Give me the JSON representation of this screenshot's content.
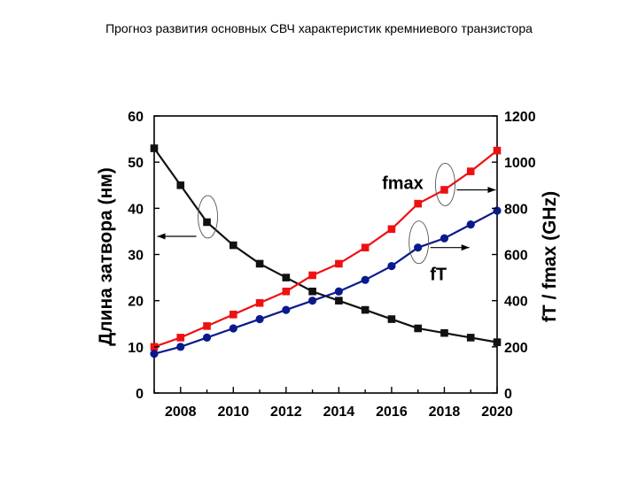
{
  "page": {
    "title": "Прогноз развития основных СВЧ характеристик кремниевого транзистора"
  },
  "chart_data": {
    "type": "line",
    "x": [
      2007,
      2008,
      2009,
      2010,
      2011,
      2012,
      2013,
      2014,
      2015,
      2016,
      2017,
      2018,
      2019,
      2020
    ],
    "xlim": [
      2007,
      2020
    ],
    "xticks": [
      2008,
      2010,
      2012,
      2014,
      2016,
      2018,
      2020
    ],
    "ylabel_left": "Длина затвора (нм)",
    "ylim_left": [
      0,
      60
    ],
    "yticks_left": [
      0,
      10,
      20,
      30,
      40,
      50,
      60
    ],
    "ylabel_right": "fT / fmax (GHz)",
    "ylim_right": [
      0,
      1200
    ],
    "yticks_right": [
      0,
      200,
      400,
      600,
      800,
      1000,
      1200
    ],
    "grid": false,
    "series": [
      {
        "axis": "left",
        "color": "#111111",
        "marker": "square",
        "values": [
          53,
          45,
          37,
          32,
          28,
          25,
          22,
          20,
          18,
          16,
          14,
          13,
          12,
          11
        ]
      },
      {
        "name": "fmax",
        "axis": "right",
        "color": "#ee1111",
        "marker": "square",
        "values": [
          200,
          240,
          290,
          340,
          390,
          440,
          510,
          560,
          630,
          710,
          820,
          880,
          960,
          1050
        ]
      },
      {
        "name": "fT",
        "axis": "right",
        "color": "#0a1a8c",
        "marker": "circle",
        "values": [
          170,
          200,
          240,
          280,
          320,
          360,
          400,
          440,
          490,
          550,
          630,
          670,
          730,
          790
        ]
      }
    ],
    "annotations": [
      {
        "series": "left",
        "point_year": 2009,
        "arrow": "left"
      },
      {
        "series": "fmax",
        "point_year": 2018,
        "arrow": "right",
        "label": "fmax"
      },
      {
        "series": "fT",
        "point_year": 2017,
        "arrow": "right",
        "label": "fT"
      }
    ]
  }
}
